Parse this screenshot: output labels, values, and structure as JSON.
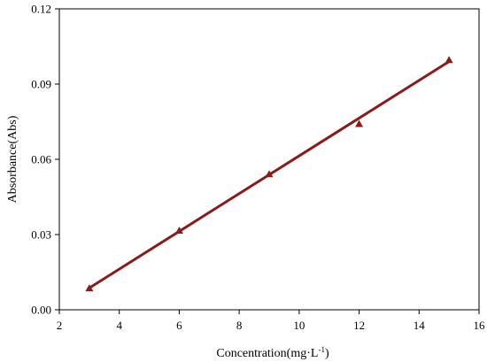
{
  "chart_data": {
    "type": "scatter",
    "title": "",
    "xlabel": "Concentration(mg·L",
    "xlabel_sup": "-1",
    "xlabel_suffix": ")",
    "ylabel": "Absorbance(Abs)",
    "xlim": [
      2,
      16
    ],
    "ylim": [
      0,
      0.12
    ],
    "xticks": [
      2,
      4,
      6,
      8,
      10,
      12,
      14,
      16
    ],
    "yticks": [
      0,
      0.03,
      0.06,
      0.09,
      0.12
    ],
    "xtick_labels": [
      "2",
      "4",
      "6",
      "8",
      "10",
      "12",
      "14",
      "16"
    ],
    "ytick_labels": [
      "0.00",
      "0.03",
      "0.06",
      "0.09",
      "0.12"
    ],
    "grid": false,
    "legend": "none",
    "series": [
      {
        "marker": "triangle",
        "color": "#8b1a1a",
        "x": [
          3,
          6,
          9,
          12,
          15
        ],
        "y": [
          0.0085,
          0.0315,
          0.054,
          0.074,
          0.0995
        ]
      }
    ],
    "fit_line": {
      "color": "#8b1a1a",
      "x": [
        3,
        15
      ],
      "y": [
        0.0087,
        0.099
      ]
    }
  }
}
